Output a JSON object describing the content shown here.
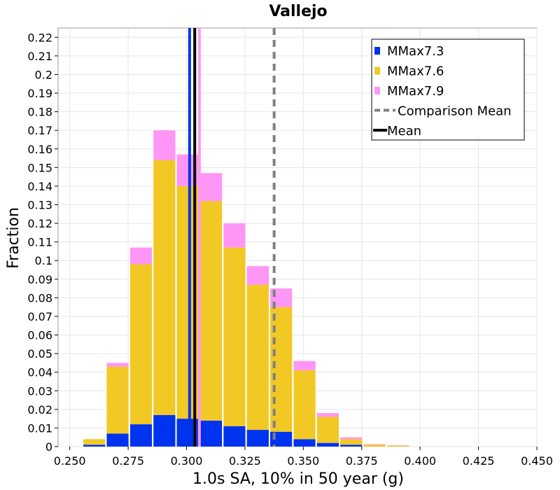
{
  "chart_data": {
    "type": "bar",
    "stacked": true,
    "title": "Vallejo",
    "xlabel": "1.0s SA, 10% in 50 year (g)",
    "ylabel": "Fraction",
    "xlim": [
      0.245,
      0.45
    ],
    "ylim": [
      0,
      0.225
    ],
    "bin_width": 0.01,
    "x_ticks": [
      "0.250",
      "0.275",
      "0.300",
      "0.325",
      "0.350",
      "0.375",
      "0.400",
      "0.425",
      "0.450"
    ],
    "y_ticks": [
      "0",
      "0.01",
      "0.02",
      "0.03",
      "0.04",
      "0.05",
      "0.06",
      "0.07",
      "0.08",
      "0.09",
      "0.1",
      "0.11",
      "0.12",
      "0.13",
      "0.14",
      "0.15",
      "0.16",
      "0.17",
      "0.18",
      "0.19",
      "0.2",
      "0.21",
      "0.22"
    ],
    "bin_starts": [
      0.2455,
      0.2555,
      0.2655,
      0.2755,
      0.2855,
      0.2955,
      0.3055,
      0.3155,
      0.3255,
      0.3355,
      0.3455,
      0.3555,
      0.3655,
      0.3755,
      0.3855
    ],
    "series": [
      {
        "name": "MMax7.3",
        "color": "#0033ee",
        "values": [
          0.0,
          0.001,
          0.007,
          0.012,
          0.017,
          0.015,
          0.014,
          0.011,
          0.009,
          0.008,
          0.004,
          0.002,
          0.001,
          0.0,
          0.0
        ]
      },
      {
        "name": "MMax7.6",
        "color": "#f2c824",
        "values": [
          0.0,
          0.003,
          0.036,
          0.086,
          0.137,
          0.125,
          0.118,
          0.096,
          0.078,
          0.067,
          0.037,
          0.014,
          0.003,
          0.001,
          0.0005
        ]
      },
      {
        "name": "MMax7.9",
        "color": "#ff96f5",
        "values": [
          0.0,
          0.0,
          0.002,
          0.009,
          0.016,
          0.017,
          0.015,
          0.013,
          0.01,
          0.01,
          0.005,
          0.002,
          0.001,
          0.0003,
          0.0002
        ]
      }
    ],
    "mean_lines": [
      {
        "series": "MMax7.3",
        "x": 0.3013,
        "color": "#0033ee"
      },
      {
        "series": "MMax7.9",
        "x": 0.3055,
        "color": "#ff96f5"
      },
      {
        "series": "MMax7.6",
        "x": 0.3035,
        "color": "#f2c824"
      },
      {
        "series": "Mean",
        "x": 0.3035,
        "color": "#000000"
      }
    ],
    "comparison_mean": {
      "x": 0.3375,
      "color": "#808080"
    },
    "legend": {
      "position": "top-right",
      "entries": [
        {
          "label": "MMax7.3",
          "kind": "swatch",
          "color": "#0033ee"
        },
        {
          "label": "MMax7.6",
          "kind": "swatch",
          "color": "#f2c824"
        },
        {
          "label": "MMax7.9",
          "kind": "swatch",
          "color": "#ff96f5"
        },
        {
          "label": "Comparison Mean",
          "kind": "dashed",
          "color": "#808080"
        },
        {
          "label": "Mean",
          "kind": "line",
          "color": "#000000"
        }
      ]
    },
    "grid": true
  }
}
